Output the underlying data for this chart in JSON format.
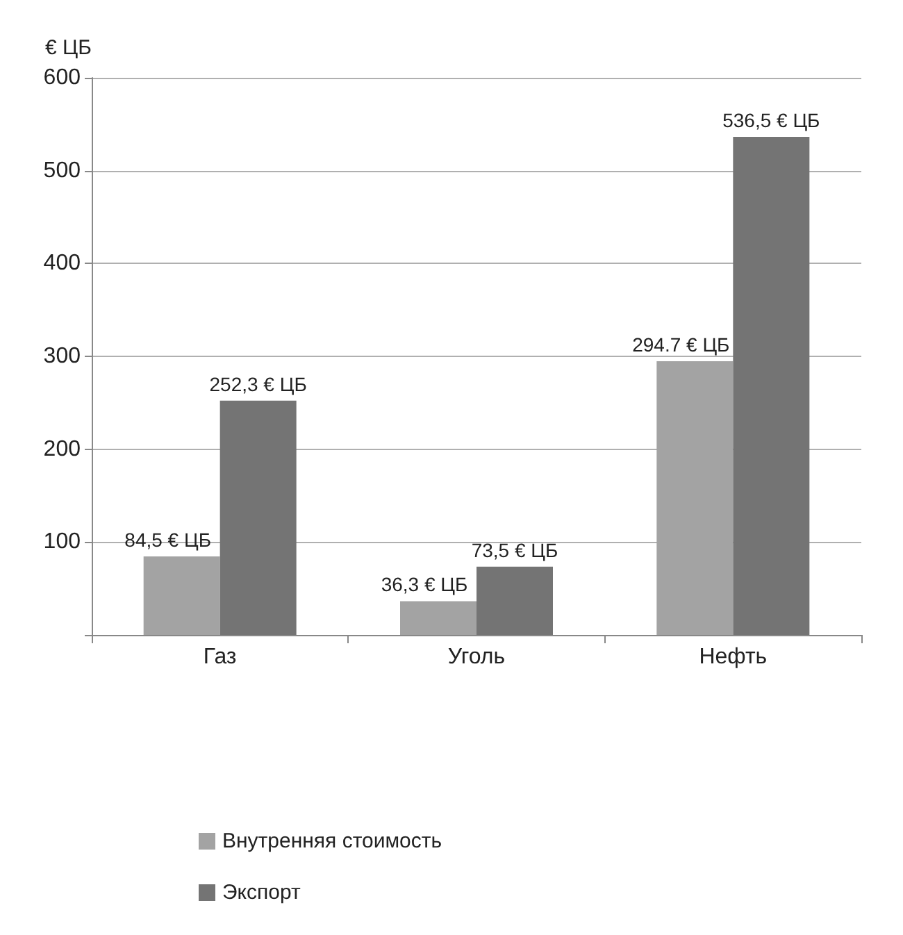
{
  "chart_data": {
    "type": "bar",
    "ylabel": "€ ЦБ",
    "categories": [
      "Газ",
      "Уголь",
      "Нефть"
    ],
    "series": [
      {
        "name": "Внутренняя стоимость",
        "color": "#a3a3a3",
        "values": [
          84.5,
          36.3,
          294.7
        ],
        "value_labels": [
          "84,5 € ЦБ",
          "36,3 € ЦБ",
          "294.7 € ЦБ"
        ]
      },
      {
        "name": "Экспорт",
        "color": "#747474",
        "values": [
          252.3,
          73.5,
          536.5
        ],
        "value_labels": [
          "252,3 € ЦБ",
          "73,5 € ЦБ",
          "536,5 € ЦБ"
        ]
      }
    ],
    "ylim": [
      0,
      600
    ],
    "yticks": [
      {
        "value": 0,
        "label": null
      },
      100,
      200,
      300,
      400,
      500,
      600
    ],
    "grid": "y",
    "legend": "bottom"
  }
}
